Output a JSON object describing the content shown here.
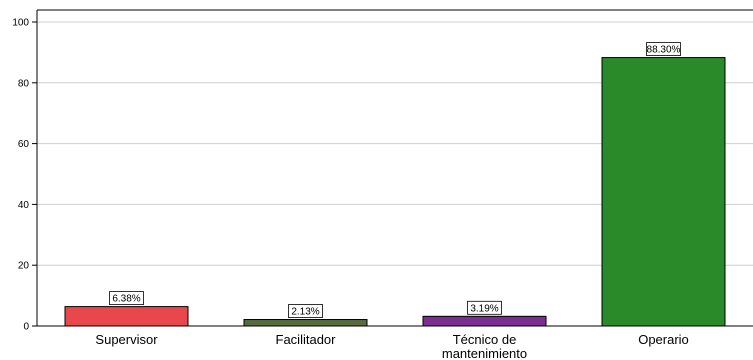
{
  "chart_data": {
    "type": "bar",
    "categories": [
      "Supervisor",
      "Facilitador",
      "Técnico de mantenimiento",
      "Operario"
    ],
    "category_lines": [
      [
        "Supervisor"
      ],
      [
        "Facilitador"
      ],
      [
        "Técnico de",
        "mantenimiento"
      ],
      [
        "Operario"
      ]
    ],
    "values": [
      6.38,
      2.13,
      3.19,
      88.3
    ],
    "data_labels": [
      "6.38%",
      "2.13%",
      "3.19%",
      "88.30%"
    ],
    "colors": [
      "#e8474b",
      "#566b3f",
      "#7b2d91",
      "#2a8a2a"
    ],
    "y_ticks": [
      "0",
      "20",
      "40",
      "60",
      "80",
      "100"
    ],
    "ylim": [
      0,
      100
    ],
    "grid": true,
    "title": "",
    "xlabel": "",
    "ylabel": ""
  }
}
